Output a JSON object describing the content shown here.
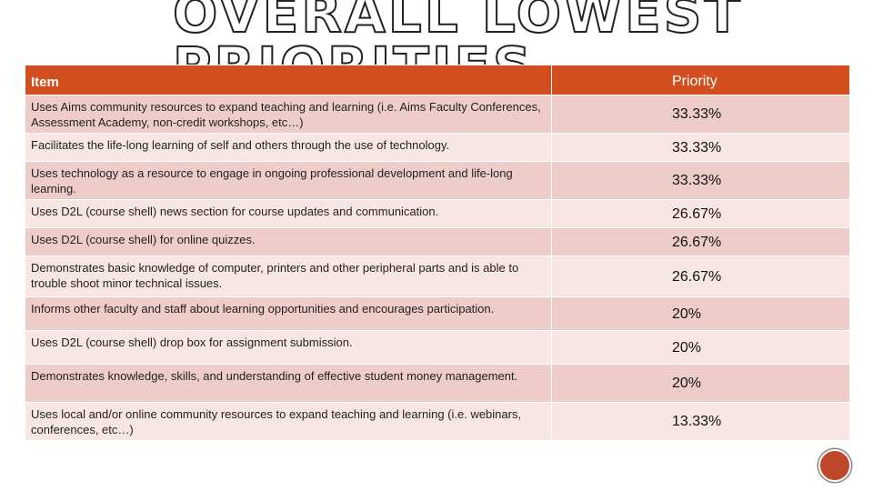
{
  "title": {
    "line1": "OVERALL LOWEST",
    "line2": "PRIORITIES"
  },
  "table": {
    "headers": {
      "item": "Item",
      "priority": "Priority"
    },
    "rows": [
      {
        "item": "Uses Aims community resources to expand teaching and learning (i.e. Aims Faculty Conferences, Assessment Academy, non-credit workshops, etc…)",
        "priority": "33.33%"
      },
      {
        "item": "Facilitates the life-long learning of self and others through the use of technology.",
        "priority": "33.33%"
      },
      {
        "item": "Uses technology as a resource to engage in ongoing professional development and life-long learning.",
        "priority": "33.33%"
      },
      {
        "item": "Uses D2L (course shell) news section for course updates and communication.",
        "priority": "26.67%"
      },
      {
        "item": "Uses D2L (course shell) for online quizzes.",
        "priority": "26.67%"
      },
      {
        "item": "Demonstrates basic knowledge of computer, printers and other peripheral parts and is able to trouble shoot minor technical issues.",
        "priority": "26.67%"
      },
      {
        "item": "Informs other faculty and staff about learning opportunities and encourages participation.",
        "priority": "20%"
      },
      {
        "item": "Uses D2L (course shell) drop box for assignment submission.",
        "priority": "20%"
      },
      {
        "item": "Demonstrates knowledge, skills, and understanding of effective student money management.",
        "priority": "20%"
      },
      {
        "item": "Uses local and/or online community resources to expand teaching and learning (i.e. webinars, conferences, etc…)",
        "priority": "13.33%"
      }
    ]
  },
  "colors": {
    "header": "#d24e1f",
    "row_odd": "#eecdc8",
    "row_even": "#f7e6e4",
    "badge": "#c0482a"
  },
  "icons": {
    "corner_badge": "circle-badge-icon"
  }
}
